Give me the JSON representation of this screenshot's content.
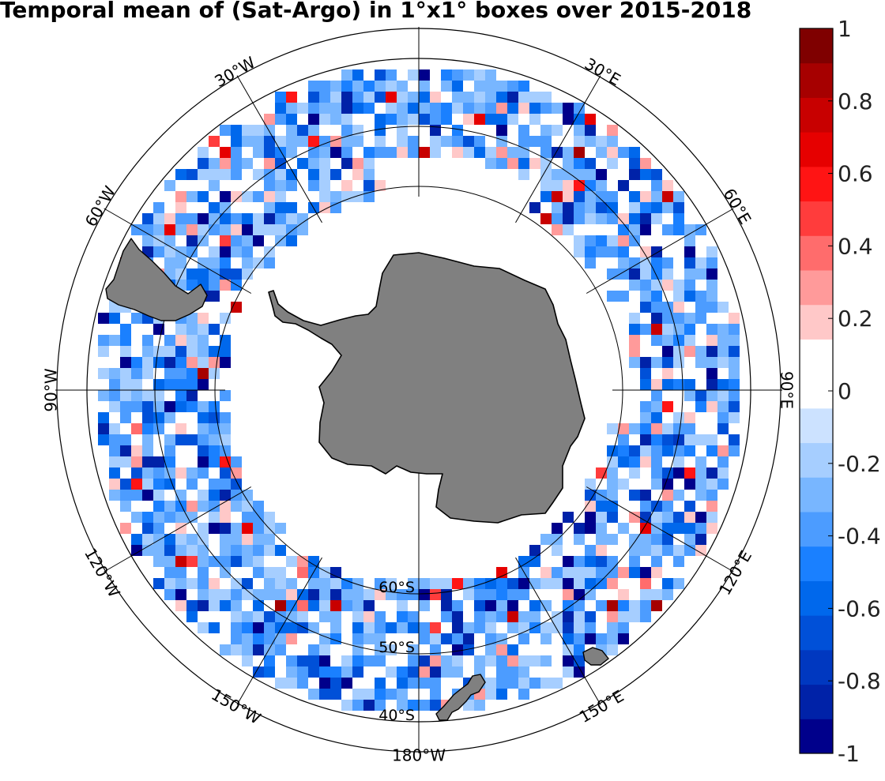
{
  "title": "Temporal mean of (Sat-Argo) in 1°x1° boxes over 2015-2018",
  "map": {
    "projection": "south polar stereographic",
    "outer_latitude": "40°S",
    "longitude_labels": [
      "30°W",
      "30°E",
      "60°W",
      "60°E",
      "90°W",
      "90°E",
      "120°W",
      "120°E",
      "150°W",
      "150°E",
      "180°W"
    ],
    "latitude_labels": [
      "60°S",
      "50°S",
      "40°S"
    ],
    "land_color": "#808080",
    "data_color_scale": "blue-white-red diverging"
  },
  "colorbar": {
    "min": -1,
    "max": 1,
    "tick_labels": [
      "1",
      "0.8",
      "0.6",
      "0.4",
      "0.2",
      "0",
      "-0.2",
      "-0.4",
      "-0.6",
      "-0.8",
      "-1"
    ],
    "colors_bottom_to_top": [
      "#00008b",
      "#0022a8",
      "#0038c0",
      "#0050d8",
      "#0068ec",
      "#1a80ff",
      "#4c9cff",
      "#78b6ff",
      "#a6ceff",
      "#cce2ff",
      "#ffffff",
      "#ffffff",
      "#ffc8c8",
      "#ff9a9a",
      "#ff6c6c",
      "#ff3c3c",
      "#ff1414",
      "#e60000",
      "#c80000",
      "#a60000",
      "#7f0000"
    ]
  }
}
